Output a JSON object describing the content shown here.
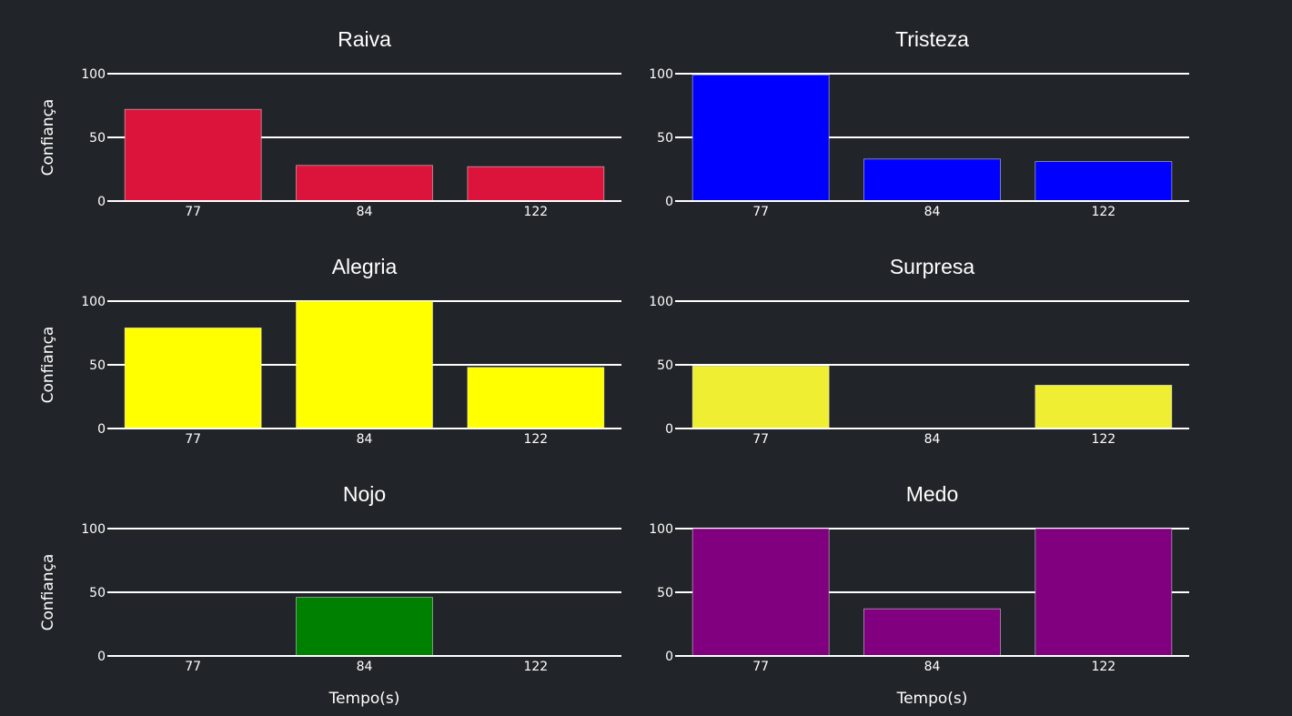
{
  "chart_data": [
    {
      "type": "bar",
      "title": "Raiva",
      "categories": [
        "77",
        "84",
        "122"
      ],
      "values": [
        72,
        28,
        27
      ],
      "color": "#dc143c",
      "ylabel": "Confiança",
      "xlabel": "",
      "ylim": [
        0,
        100
      ],
      "yticks": [
        0,
        50,
        100
      ]
    },
    {
      "type": "bar",
      "title": "Tristeza",
      "categories": [
        "77",
        "84",
        "122"
      ],
      "values": [
        99,
        33,
        31
      ],
      "color": "#0000ff",
      "ylabel": "",
      "xlabel": "",
      "ylim": [
        0,
        100
      ],
      "yticks": [
        0,
        50,
        100
      ]
    },
    {
      "type": "bar",
      "title": "Alegria",
      "categories": [
        "77",
        "84",
        "122"
      ],
      "values": [
        79,
        100,
        48
      ],
      "color": "#ffff00",
      "ylabel": "Confiança",
      "xlabel": "",
      "ylim": [
        0,
        100
      ],
      "yticks": [
        0,
        50,
        100
      ]
    },
    {
      "type": "bar",
      "title": "Surpresa",
      "categories": [
        "77",
        "84",
        "122"
      ],
      "values": [
        49,
        0,
        34
      ],
      "color": "#f0ee32",
      "ylabel": "",
      "xlabel": "",
      "ylim": [
        0,
        100
      ],
      "yticks": [
        0,
        50,
        100
      ]
    },
    {
      "type": "bar",
      "title": "Nojo",
      "categories": [
        "77",
        "84",
        "122"
      ],
      "values": [
        0,
        46,
        0
      ],
      "color": "#008000",
      "ylabel": "Confiança",
      "xlabel": "Tempo(s)",
      "ylim": [
        0,
        100
      ],
      "yticks": [
        0,
        50,
        100
      ]
    },
    {
      "type": "bar",
      "title": "Medo",
      "categories": [
        "77",
        "84",
        "122"
      ],
      "values": [
        100,
        37,
        100
      ],
      "color": "#800080",
      "ylabel": "",
      "xlabel": "Tempo(s)",
      "ylim": [
        0,
        100
      ],
      "yticks": [
        0,
        50,
        100
      ]
    }
  ],
  "colors": {
    "background": "#212428",
    "text": "#ffffff",
    "grid": "#ffffff"
  }
}
